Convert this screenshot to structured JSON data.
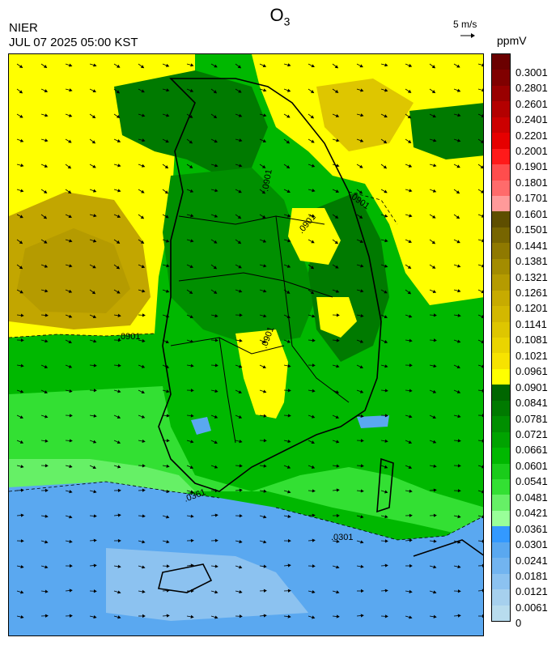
{
  "header": {
    "pollutant": "O",
    "pollutant_sub": "3",
    "organization": "NIER",
    "timestamp": "JUL 07 2025 05:00 KST",
    "vector_scale": "5 m/s",
    "unit": "ppmV"
  },
  "colorbar": {
    "labels": [
      "0.3001",
      "0.2801",
      "0.2601",
      "0.2401",
      "0.2201",
      "0.2001",
      "0.1901",
      "0.1801",
      "0.1701",
      "0.1601",
      "0.1501",
      "0.1441",
      "0.1381",
      "0.1321",
      "0.1261",
      "0.1201",
      "0.1141",
      "0.1081",
      "0.1021",
      "0.0961",
      "0.0901",
      "0.0841",
      "0.0781",
      "0.0721",
      "0.0661",
      "0.0601",
      "0.0541",
      "0.0481",
      "0.0421",
      "0.0361",
      "0.0301",
      "0.0241",
      "0.0181",
      "0.0121",
      "0.0061",
      "0"
    ],
    "colors": [
      "#6b0000",
      "#800000",
      "#990000",
      "#b30000",
      "#cc0000",
      "#e60000",
      "#ff1a1a",
      "#ff4d4d",
      "#ff6b6b",
      "#ff9a9a",
      "#5e4e00",
      "#776500",
      "#8f7900",
      "#a38c00",
      "#b59b00",
      "#c7ab00",
      "#d3b800",
      "#dec600",
      "#ead400",
      "#f7e300",
      "#ffff00",
      "#006600",
      "#007a00",
      "#008f00",
      "#00a300",
      "#00b800",
      "#1acc1a",
      "#33e033",
      "#66f066",
      "#99ff99",
      "#3399ff",
      "#5aa8f0",
      "#72b4f0",
      "#8cc2f0",
      "#a6d0ee",
      "#b8dcee"
    ]
  },
  "contour_labels": [
    ".0901",
    ".0901",
    ".0901",
    ".0901",
    ".0901",
    ".0301",
    ".0361"
  ]
}
